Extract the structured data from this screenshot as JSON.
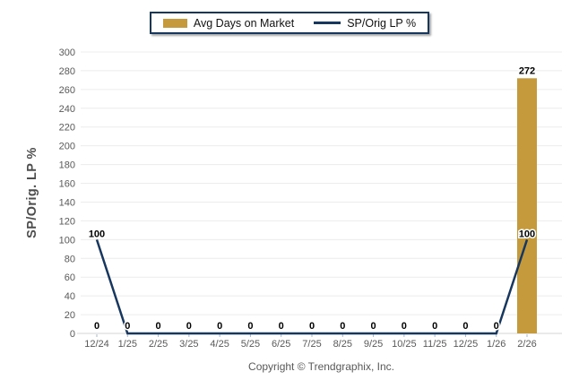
{
  "legend": {
    "items": [
      {
        "label": "Avg Days on Market",
        "swatch": "bar-swatch",
        "color": "#c49a3c"
      },
      {
        "label": "SP/Orig LP %",
        "swatch": "line-swatch",
        "color": "#17375e"
      }
    ]
  },
  "chart_data": {
    "type": "bar+line",
    "categories": [
      "12/24",
      "1/25",
      "2/25",
      "3/25",
      "4/25",
      "5/25",
      "6/25",
      "7/25",
      "8/25",
      "9/25",
      "10/25",
      "11/25",
      "12/25",
      "1/26",
      "2/26"
    ],
    "series": [
      {
        "name": "Avg Days on Market",
        "type": "bar",
        "color": "#c49a3c",
        "values": [
          0,
          0,
          0,
          0,
          0,
          0,
          0,
          0,
          0,
          0,
          0,
          0,
          0,
          0,
          272
        ]
      },
      {
        "name": "SP/Orig LP %",
        "type": "line",
        "color": "#17375e",
        "values": [
          100,
          0,
          0,
          0,
          0,
          0,
          0,
          0,
          0,
          0,
          0,
          0,
          0,
          0,
          100
        ]
      }
    ],
    "ylabel": "SP/Orig. LP %",
    "xlabel": "",
    "title": "",
    "ylim": [
      0,
      300
    ],
    "ytick_step": 20,
    "grid": "horizontal",
    "legend_position": "top-center",
    "colors": {
      "gridline": "#ececec",
      "axis_line": "#d6d6d6",
      "tick_mark": "#a6b8cf",
      "tick_text": "#595959",
      "data_label": "#000000"
    }
  },
  "footer": {
    "copyright": "Copyright © Trendgraphix, Inc."
  }
}
